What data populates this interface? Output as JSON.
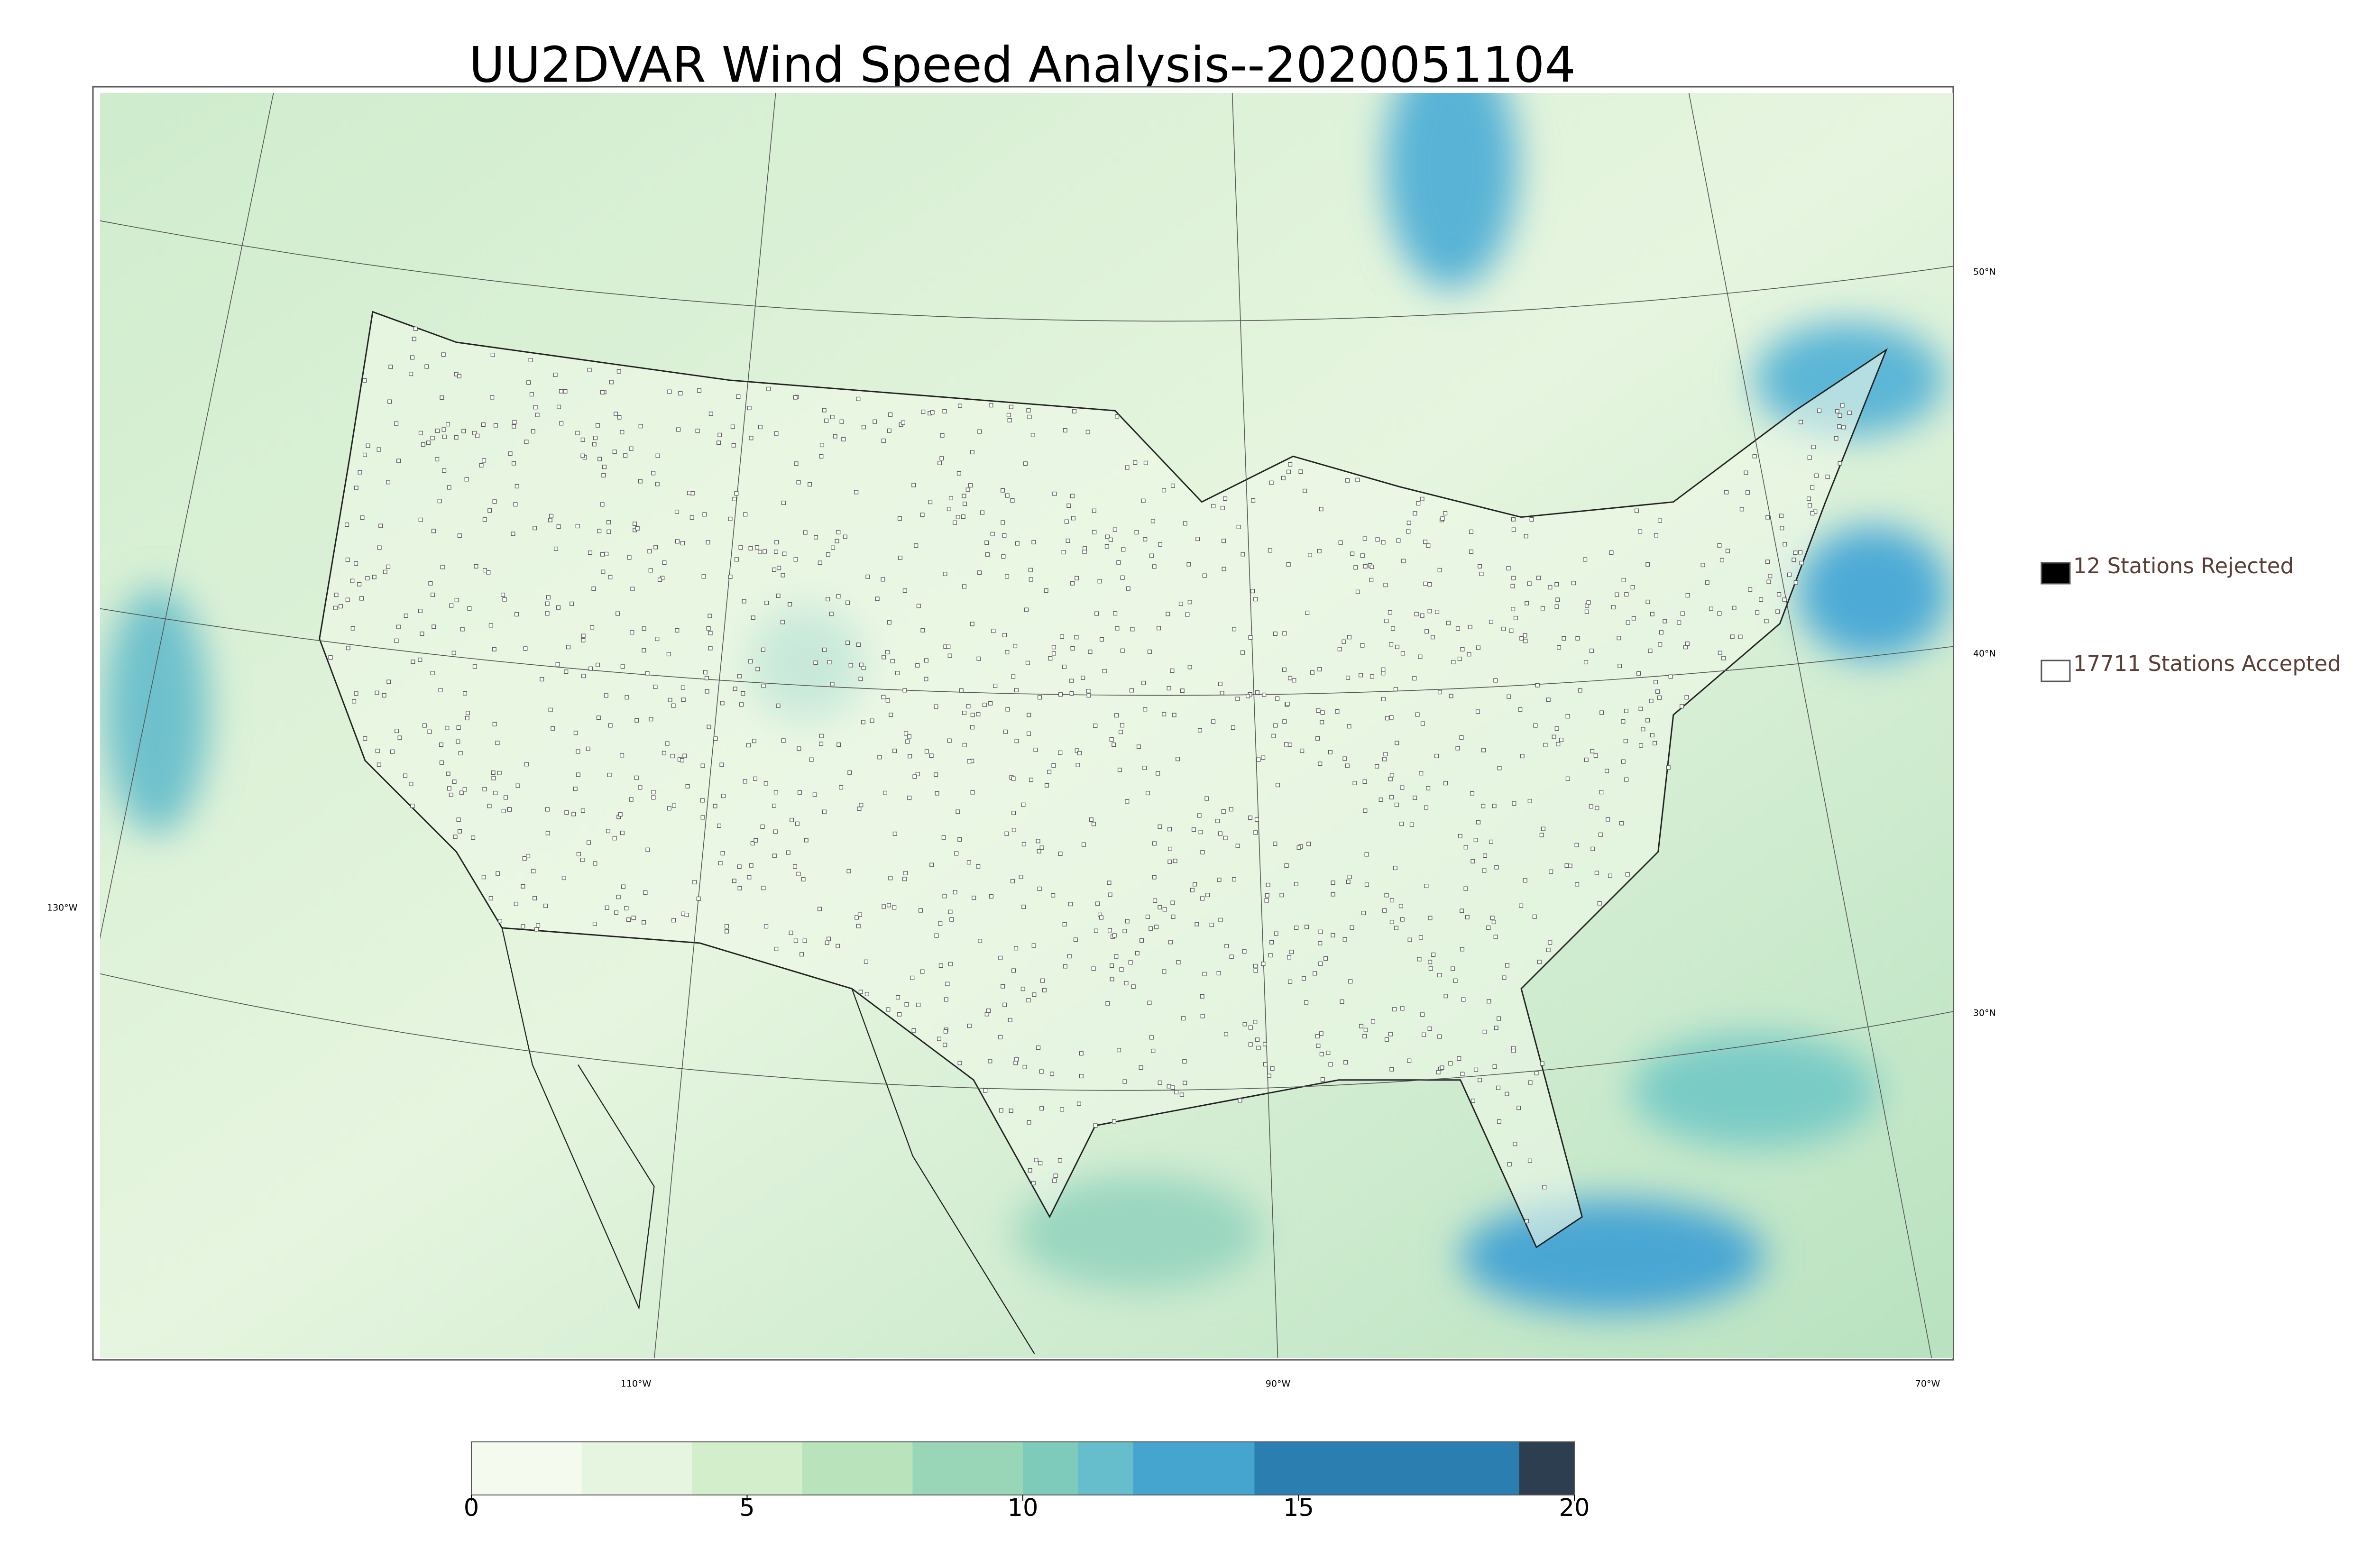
{
  "title": "UU2DVAR Wind Speed Analysis--2020051104",
  "map": {
    "lat_labels": [
      "50°N",
      "40°N",
      "30°N"
    ],
    "lon_labels": [
      "130°W",
      "110°W",
      "90°W",
      "70°W"
    ]
  },
  "legend": [
    {
      "label": "12 Stations Rejected",
      "color": "#000000"
    },
    {
      "label": "17711 Stations Accepted",
      "color": "#ffffff"
    }
  ],
  "colorbar": {
    "lim": [
      0,
      20
    ],
    "ticks": [
      0,
      5,
      10,
      15,
      20
    ],
    "levels": [
      0,
      2,
      4,
      6,
      8,
      10,
      11,
      12,
      14.2,
      19,
      20
    ],
    "colors": [
      "#f4fbee",
      "#e6f5df",
      "#d2eecb",
      "#b9e3bb",
      "#99d6b8",
      "#7ecbbb",
      "#66bdcb",
      "#45a5cf",
      "#2b7eb0",
      "#2c3e50"
    ]
  }
}
